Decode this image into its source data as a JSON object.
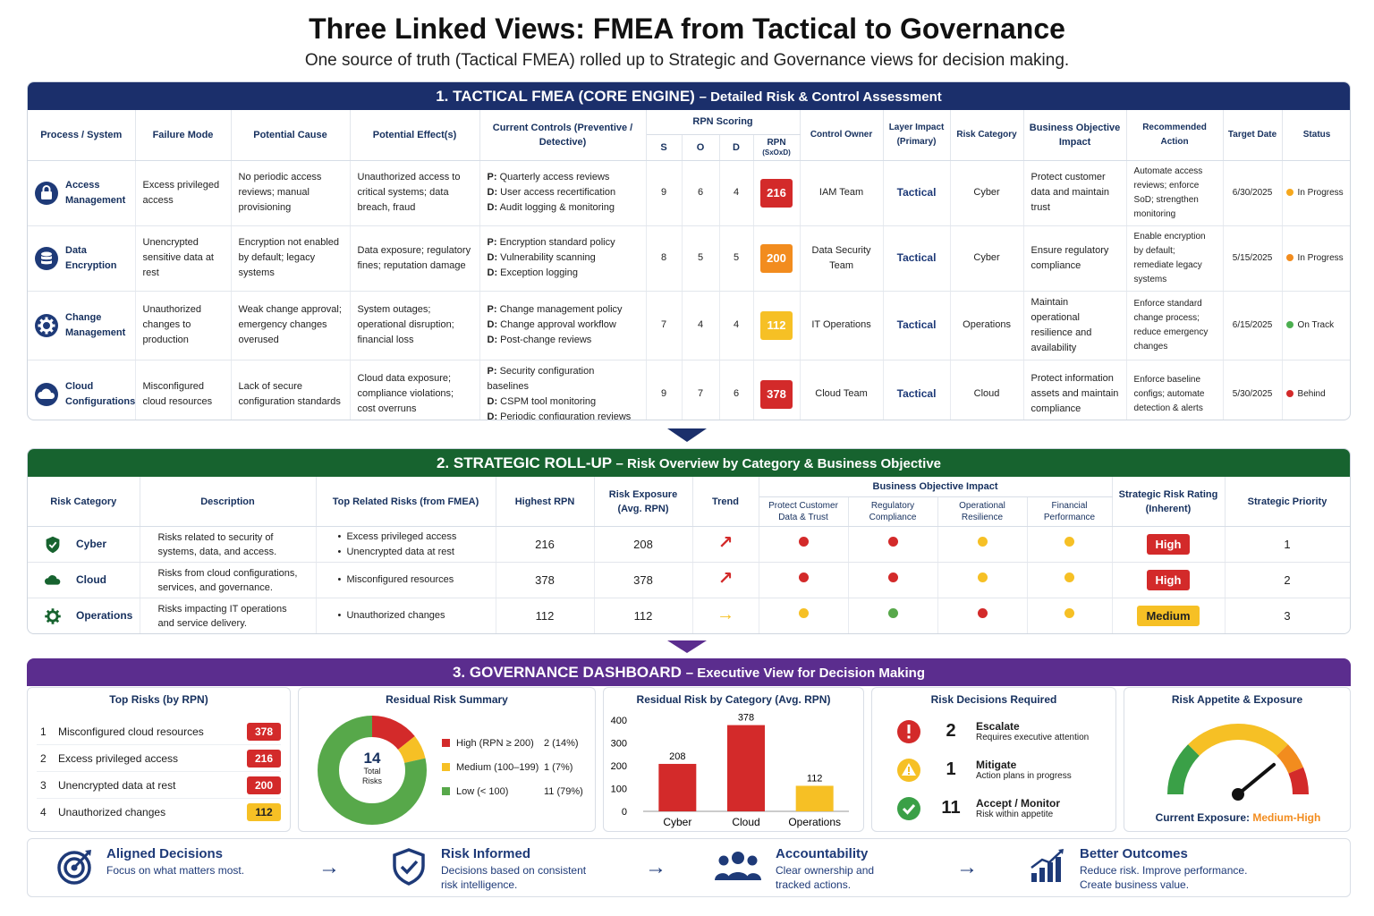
{
  "title": "Three Linked Views: FMEA from Tactical to Governance",
  "subtitle": "One source of truth (Tactical FMEA) rolled up to Strategic and Governance views for decision making.",
  "colors": {
    "navy": "#1b2f6b",
    "green": "#17632f",
    "purple": "#5b2d8e",
    "red": "#d32a2a",
    "orange": "#f28c1e",
    "yellow": "#f6c025",
    "lightgreen": "#57a84a"
  },
  "tactical": {
    "heading": "1. TACTICAL FMEA (CORE ENGINE)",
    "heading_sub": "– Detailed Risk & Control Assessment",
    "headers": {
      "process": "Process / System",
      "failure": "Failure Mode",
      "cause": "Potential Cause",
      "effect": "Potential Effect(s)",
      "controls": "Current Controls (Preventive / Detective)",
      "rpn_scoring": "RPN Scoring",
      "s": "S",
      "o": "O",
      "d": "D",
      "rpn": "RPN",
      "rpn_formula": "(SxOxD)",
      "owner": "Control Owner",
      "layer": "Layer Impact (Primary)",
      "category": "Risk Category",
      "objective": "Business Objective Impact",
      "action": "Recommended Action",
      "target": "Target Date",
      "status": "Status"
    },
    "rows": [
      {
        "icon": "lock-icon",
        "process": "Access Management",
        "failure": "Excess privileged access",
        "cause": "No periodic access reviews; manual provisioning",
        "effect": "Unauthorized access to critical systems; data breach, fraud",
        "controls": [
          "Quarterly access reviews",
          "User access recertification",
          "Audit logging & monitoring"
        ],
        "control_prefixes": [
          "P:",
          "D:",
          "D:"
        ],
        "s": "9",
        "o": "6",
        "d": "4",
        "rpn": "216",
        "rpn_color": "#d32a2a",
        "owner": "IAM Team",
        "layer": "Tactical",
        "category": "Cyber",
        "objective": "Protect customer data and maintain trust",
        "action": "Automate access reviews; enforce SoD; strengthen monitoring",
        "target": "6/30/2025",
        "status": "In Progress",
        "status_color": "#f6a81e"
      },
      {
        "icon": "database-icon",
        "process": "Data Encryption",
        "failure": "Unencrypted sensitive data at rest",
        "cause": "Encryption not enabled by default; legacy systems",
        "effect": "Data exposure; regulatory fines; reputation damage",
        "controls": [
          "Encryption standard policy",
          "Vulnerability scanning",
          "Exception logging"
        ],
        "control_prefixes": [
          "P:",
          "D:",
          "D:"
        ],
        "s": "8",
        "o": "5",
        "d": "5",
        "rpn": "200",
        "rpn_color": "#f28c1e",
        "owner": "Data Security Team",
        "layer": "Tactical",
        "category": "Cyber",
        "objective": "Ensure regulatory compliance",
        "action": "Enable encryption by default; remediate legacy systems",
        "target": "5/15/2025",
        "status": "In Progress",
        "status_color": "#f28c1e"
      },
      {
        "icon": "gear-icon",
        "process": "Change Management",
        "failure": "Unauthorized changes to production",
        "cause": "Weak change approval; emergency changes overused",
        "effect": "System outages; operational disruption; financial loss",
        "controls": [
          "Change management policy",
          "Change approval workflow",
          "Post-change reviews"
        ],
        "control_prefixes": [
          "P:",
          "D:",
          "D:"
        ],
        "s": "7",
        "o": "4",
        "d": "4",
        "rpn": "112",
        "rpn_color": "#f6c025",
        "owner": "IT Operations",
        "layer": "Tactical",
        "category": "Operations",
        "objective": "Maintain operational resilience and availability",
        "action": "Enforce standard change process; reduce emergency changes",
        "target": "6/15/2025",
        "status": "On Track",
        "status_color": "#4caf50"
      },
      {
        "icon": "cloud-icon",
        "process": "Cloud Configurations",
        "failure": "Misconfigured cloud resources",
        "cause": "Lack of secure configuration standards",
        "effect": "Cloud data exposure; compliance violations; cost overruns",
        "controls": [
          "Security configuration baselines",
          "CSPM tool monitoring",
          "Periodic configuration reviews"
        ],
        "control_prefixes": [
          "P:",
          "D:",
          "D:"
        ],
        "s": "9",
        "o": "7",
        "d": "6",
        "rpn": "378",
        "rpn_color": "#d32a2a",
        "owner": "Cloud Team",
        "layer": "Tactical",
        "category": "Cloud",
        "objective": "Protect information assets and maintain compliance",
        "action": "Enforce baseline configs; automate detection & alerts",
        "target": "5/30/2025",
        "status": "Behind",
        "status_color": "#d32a2a"
      }
    ]
  },
  "strategic": {
    "heading": "2. STRATEGIC ROLL-UP",
    "heading_sub": "– Risk Overview by Category & Business Objective",
    "headers": {
      "category": "Risk Category",
      "description": "Description",
      "top_risks": "Top Related Risks (from FMEA)",
      "highest": "Highest RPN",
      "exposure": "Risk Exposure (Avg. RPN)",
      "trend": "Trend",
      "impact": "Business Objective Impact",
      "impact_cols": [
        "Protect Customer Data & Trust",
        "Regulatory Compliance",
        "Operational Resilience",
        "Financial Performance"
      ],
      "rating": "Strategic Risk Rating (Inherent)",
      "priority": "Strategic Priority"
    },
    "rows": [
      {
        "icon": "shield-icon",
        "category": "Cyber",
        "description": "Risks related to security of systems, data, and access.",
        "risks": [
          "Excess privileged access",
          "Unencrypted data at rest"
        ],
        "highest": "216",
        "exposure": "208",
        "trend": "↗",
        "trend_color": "#d32a2a",
        "impacts": [
          "#d32a2a",
          "#d32a2a",
          "#f6c025",
          "#f6c025"
        ],
        "rating": "High",
        "rating_color": "#d32a2a",
        "priority": "1"
      },
      {
        "icon": "cloud-icon",
        "category": "Cloud",
        "description": "Risks from cloud configurations, services, and governance.",
        "risks": [
          "Misconfigured resources"
        ],
        "highest": "378",
        "exposure": "378",
        "trend": "↗",
        "trend_color": "#d32a2a",
        "impacts": [
          "#d32a2a",
          "#d32a2a",
          "#f6c025",
          "#f6c025"
        ],
        "rating": "High",
        "rating_color": "#d32a2a",
        "priority": "2"
      },
      {
        "icon": "gear-icon",
        "category": "Operations",
        "description": "Risks impacting IT operations and service delivery.",
        "risks": [
          "Unauthorized changes"
        ],
        "highest": "112",
        "exposure": "112",
        "trend": "→",
        "trend_color": "#f6c025",
        "impacts": [
          "#f6c025",
          "#57a84a",
          "#d32a2a",
          "#f6c025"
        ],
        "rating": "Medium",
        "rating_color": "#f6c025",
        "priority": "3"
      }
    ]
  },
  "governance": {
    "heading": "3. GOVERNANCE DASHBOARD",
    "heading_sub": "– Executive View for Decision Making",
    "top_risks": {
      "title": "Top Risks (by RPN)",
      "items": [
        {
          "n": "1",
          "label": "Misconfigured cloud resources",
          "value": "378",
          "color": "#d32a2a"
        },
        {
          "n": "2",
          "label": "Excess privileged access",
          "value": "216",
          "color": "#d32a2a"
        },
        {
          "n": "3",
          "label": "Unencrypted data at rest",
          "value": "200",
          "color": "#d32a2a"
        },
        {
          "n": "4",
          "label": "Unauthorized changes",
          "value": "112",
          "color": "#f6c025"
        }
      ]
    },
    "residual": {
      "title": "Residual Risk Summary",
      "total": "14",
      "total_label": "Total Risks",
      "segments": [
        {
          "label": "High (RPN ≥ 200)",
          "count": "2 (14%)",
          "value": 2,
          "color": "#d32a2a"
        },
        {
          "label": "Medium (100–199)",
          "count": "1 (7%)",
          "value": 1,
          "color": "#f6c025"
        },
        {
          "label": "Low (< 100)",
          "count": "11 (79%)",
          "value": 11,
          "color": "#57a84a"
        }
      ]
    },
    "chart_data": {
      "type": "bar",
      "title": "Residual Risk by Category (Avg. RPN)",
      "categories": [
        "Cyber",
        "Cloud",
        "Operations"
      ],
      "values": [
        208,
        378,
        112
      ],
      "colors": [
        "#d32a2a",
        "#d32a2a",
        "#f6c025"
      ],
      "ylim": [
        0,
        400
      ],
      "yticks": [
        "400",
        "300",
        "200",
        "100",
        "0"
      ],
      "xlabel": "",
      "ylabel": ""
    },
    "decisions": {
      "title": "Risk Decisions Required",
      "items": [
        {
          "icon": "alert-icon",
          "num": "2",
          "title": "Escalate",
          "desc": "Requires executive attention",
          "color": "#d32a2a"
        },
        {
          "icon": "warning-icon",
          "num": "1",
          "title": "Mitigate",
          "desc": "Action plans in progress",
          "color": "#f6c025"
        },
        {
          "icon": "check-icon",
          "num": "11",
          "title": "Accept / Monitor",
          "desc": "Risk within appetite",
          "color": "#3aa047"
        }
      ]
    },
    "appetite": {
      "title": "Risk Appetite & Exposure",
      "exposure_label": "Current Exposure:",
      "exposure_value": "Medium-High",
      "level": 0.78
    }
  },
  "footer": [
    {
      "icon": "target-icon",
      "title": "Aligned Decisions",
      "desc": "Focus on what matters most."
    },
    {
      "icon": "shield-check-icon",
      "title": "Risk Informed",
      "desc": "Decisions based on consistent risk intelligence."
    },
    {
      "icon": "team-icon",
      "title": "Accountability",
      "desc": "Clear ownership and tracked actions."
    },
    {
      "icon": "growth-chart-icon",
      "title": "Better Outcomes",
      "desc": "Reduce risk. Improve performance. Create business value."
    }
  ]
}
